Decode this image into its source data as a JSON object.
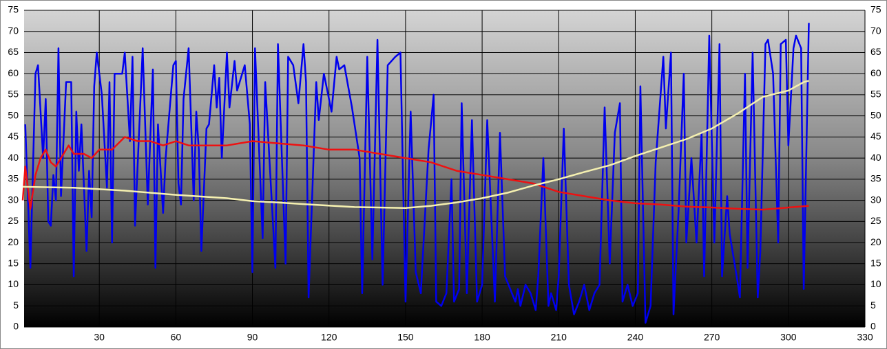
{
  "chart_data": {
    "type": "line",
    "xlim": [
      0,
      330
    ],
    "xticks": [
      30,
      60,
      90,
      120,
      150,
      180,
      210,
      240,
      270,
      300,
      330
    ],
    "ylim": [
      0,
      75
    ],
    "yticks": [
      0,
      5,
      10,
      15,
      20,
      25,
      30,
      35,
      40,
      45,
      50,
      55,
      60,
      65,
      70,
      75
    ],
    "y2lim": [
      0,
      75
    ],
    "y2ticks": [
      0,
      5,
      10,
      15,
      20,
      25,
      30,
      35,
      40,
      45,
      50,
      55,
      60,
      65,
      70,
      75
    ],
    "grid": true,
    "series": [
      {
        "color": "#0000ee",
        "x": [
          1,
          3,
          5,
          6,
          8,
          9,
          10,
          11,
          12,
          13,
          14,
          15,
          17,
          19,
          20,
          21,
          22,
          23,
          25,
          26,
          27,
          28,
          29,
          31,
          33,
          34,
          35,
          36,
          39,
          40,
          42,
          43,
          44,
          47,
          49,
          51,
          52,
          53,
          55,
          56,
          59,
          60,
          61,
          62,
          63,
          65,
          67,
          68,
          69,
          70,
          72,
          73,
          75,
          76,
          77,
          78,
          80,
          81,
          83,
          84,
          87,
          89,
          90,
          91,
          94,
          95,
          99,
          100,
          103,
          104,
          106,
          108,
          110,
          111,
          112,
          115,
          116,
          118,
          119,
          121,
          123,
          124,
          126,
          129,
          130,
          132,
          133,
          135,
          137,
          139,
          141,
          143,
          146,
          148,
          150,
          152,
          154,
          156,
          159,
          161,
          162,
          164,
          166,
          168,
          169,
          171,
          172,
          174,
          176,
          178,
          180,
          182,
          185,
          187,
          189,
          191,
          193,
          194,
          195,
          197,
          199,
          201,
          202,
          204,
          206,
          207,
          209,
          210,
          212,
          214,
          216,
          218,
          220,
          222,
          224,
          226,
          228,
          230,
          232,
          234,
          235,
          237,
          239,
          241,
          242,
          244,
          246,
          248,
          251,
          252,
          254,
          255,
          257,
          259,
          260,
          262,
          264,
          266,
          267,
          269,
          271,
          273,
          274,
          276,
          277,
          280,
          281,
          283,
          284,
          286,
          288,
          289,
          291,
          292,
          294,
          296,
          297,
          299,
          300,
          302,
          303,
          305,
          306,
          308
        ],
        "values": [
          48,
          14,
          60,
          62,
          40,
          54,
          25,
          24,
          36,
          30,
          66,
          31,
          58,
          58,
          12,
          51,
          37,
          48,
          18,
          37,
          26,
          57,
          65,
          55,
          33,
          58,
          20,
          60,
          60,
          65,
          44,
          64,
          24,
          66,
          29,
          61,
          14,
          48,
          27,
          40,
          62,
          63,
          34,
          29,
          54,
          66,
          30,
          51,
          42,
          18,
          47,
          48,
          62,
          52,
          59,
          40,
          65,
          52,
          63,
          56,
          62,
          48,
          13,
          66,
          21,
          58,
          14,
          67,
          15,
          64,
          62,
          53,
          67,
          58,
          7,
          58,
          49,
          60,
          57,
          51,
          64,
          61,
          62,
          52,
          48,
          40,
          8,
          64,
          16,
          68,
          10,
          62,
          64,
          65,
          6,
          51,
          13,
          8,
          42,
          55,
          6,
          5,
          8,
          35,
          6,
          9,
          53,
          8,
          49,
          6,
          10,
          49,
          6,
          46,
          12,
          9,
          6,
          9,
          5,
          10,
          8,
          4,
          12,
          40,
          5,
          8,
          4,
          12,
          47,
          10,
          3,
          6,
          10,
          4,
          8,
          10,
          52,
          15,
          46,
          53,
          6,
          10,
          5,
          8,
          57,
          1,
          5,
          39,
          64,
          47,
          65,
          3,
          28,
          60,
          20,
          40,
          20,
          46,
          12,
          69,
          20,
          67,
          12,
          31,
          22,
          11,
          7,
          60,
          14,
          65,
          7,
          18,
          67,
          68,
          60,
          20,
          67,
          68,
          43,
          66,
          69,
          66,
          9,
          72
        ]
      },
      {
        "color": "#ee1111",
        "x": [
          0,
          1,
          3,
          5,
          7,
          9,
          11,
          13,
          15,
          18,
          20,
          24,
          27,
          30,
          35,
          40,
          45,
          50,
          55,
          60,
          65,
          80,
          90,
          110,
          120,
          130,
          140,
          150,
          160,
          170,
          180,
          190,
          200,
          210,
          220,
          230,
          240,
          250,
          260,
          270,
          280,
          290,
          300,
          308
        ],
        "values": [
          30,
          38,
          28,
          36,
          40,
          42,
          39,
          38,
          40,
          43,
          41,
          41,
          40,
          42,
          42,
          45,
          44,
          44,
          43,
          44,
          43,
          43,
          44,
          43,
          42,
          42,
          41,
          40,
          39,
          37,
          36,
          35,
          34,
          32,
          31,
          30,
          29.3,
          29,
          28.5,
          28.3,
          28,
          27.8,
          28.3,
          28.7
        ]
      },
      {
        "color": "#f5f0b0",
        "x": [
          0,
          20,
          40,
          60,
          80,
          90,
          100,
          110,
          130,
          150,
          160,
          170,
          180,
          190,
          200,
          210,
          220,
          230,
          240,
          250,
          260,
          270,
          280,
          290,
          300,
          306,
          308
        ],
        "values": [
          33.2,
          33,
          32.3,
          31.3,
          30.5,
          29.8,
          29.5,
          29.1,
          28.4,
          28.2,
          28.7,
          29.5,
          30.5,
          31.8,
          33.5,
          35,
          36.7,
          38.3,
          40.5,
          42.5,
          44.5,
          47,
          50.5,
          54.5,
          56,
          58,
          58.3
        ]
      }
    ]
  }
}
